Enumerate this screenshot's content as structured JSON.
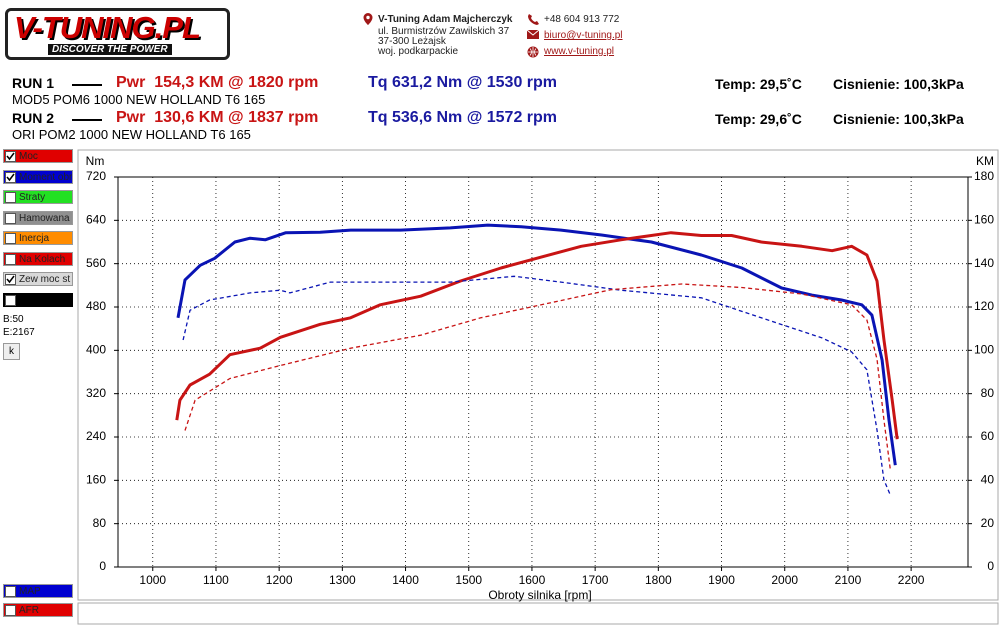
{
  "header": {
    "logo": "V-TUNING.PL",
    "slogan": "DISCOVER THE POWER",
    "company": "V-Tuning Adam Majcherczyk",
    "street": "ul. Burmistrzów Zawilskich 37",
    "city": "37-300 Leżajsk",
    "region": "woj. podkarpackie",
    "phone": "+48 604 913 772",
    "email": "biuro@v-tuning.pl",
    "web": "www.v-tuning.pl"
  },
  "runs": [
    {
      "label": "RUN 1",
      "power": "Pwr  154,3 KM @ 1820 rpm",
      "torque": "Tq 631,2 Nm @ 1530 rpm",
      "temp": "Temp: 29,5˚C",
      "pressure": "Cisnienie: 100,3kPa",
      "description": "MOD5 POM6 1000 NEW HOLLAND T6 165"
    },
    {
      "label": "RUN 2",
      "power": "Pwr  130,6 KM @ 1837 rpm",
      "torque": "Tq 536,6 Nm @ 1572 rpm",
      "temp": "Temp: 29,6˚C",
      "pressure": "Cisnienie: 100,3kPa",
      "description": "ORI POM2 1000 NEW HOLLAND T6 165"
    }
  ],
  "panel": {
    "options": [
      {
        "label": "Moc",
        "color": "#e00000",
        "checked": true
      },
      {
        "label": "Moment obr",
        "color": "#0000d0",
        "checked": true
      },
      {
        "label": "Straty",
        "color": "#22e022",
        "checked": false
      },
      {
        "label": "Hamowana",
        "color": "#909090",
        "checked": false
      },
      {
        "label": "Inercja",
        "color": "#ff8c00",
        "checked": false
      },
      {
        "label": "Na Kolach",
        "color": "#e00000",
        "checked": false
      },
      {
        "label": "Zew moc st",
        "color": "#d8d8d8",
        "checked": true
      }
    ],
    "begin": "B:50",
    "end": "E:2167",
    "button": "k",
    "bottom_options": [
      {
        "label": "MAP",
        "color": "#0000d0",
        "checked": false
      },
      {
        "label": "AFR",
        "color": "#e00000",
        "checked": false
      }
    ]
  },
  "chart_data": {
    "type": "line",
    "xlabel": "Obroty silnika [rpm]",
    "ylabel": "Nm",
    "y2label": "KM",
    "xlim": [
      945,
      2290
    ],
    "xticks": [
      1000,
      1100,
      1200,
      1300,
      1400,
      1500,
      1600,
      1700,
      1800,
      1900,
      2000,
      2100,
      2200
    ],
    "ylim": [
      0,
      720
    ],
    "yticks": [
      0,
      80,
      160,
      240,
      320,
      400,
      480,
      560,
      640,
      720
    ],
    "y2lim": [
      0,
      180
    ],
    "y2ticks": [
      0,
      20,
      40,
      60,
      80,
      100,
      120,
      140,
      160,
      180
    ],
    "grid": true,
    "series": [
      {
        "color": "#0a14b4",
        "style": "solid",
        "x": [
          1040,
          1051,
          1075,
          1098,
          1130,
          1154,
          1178,
          1210,
          1265,
          1313,
          1392,
          1471,
          1530,
          1583,
          1646,
          1710,
          1789,
          1868,
          1932,
          1995,
          2043,
          2090,
          2122,
          2138,
          2154,
          2165,
          2175
        ],
        "values": [
          460,
          530,
          557,
          570,
          600,
          607,
          604,
          617,
          618,
          622,
          622,
          626,
          631.2,
          628,
          622,
          613,
          600,
          576,
          552,
          515,
          502,
          493,
          484,
          465,
          382,
          271,
          188
        ]
      },
      {
        "color": "#c81414",
        "style": "solid",
        "axis": "y2",
        "x": [
          1038,
          1043,
          1059,
          1090,
          1122,
          1170,
          1202,
          1265,
          1313,
          1360,
          1424,
          1487,
          1551,
          1614,
          1678,
          1741,
          1820,
          1868,
          1916,
          1963,
          2027,
          2075,
          2106,
          2130,
          2146,
          2157,
          2170,
          2178
        ],
        "values": [
          67.8,
          77,
          84,
          89,
          98,
          101,
          106,
          112,
          115,
          121,
          125,
          132,
          138,
          143,
          148,
          151,
          154.3,
          153,
          153,
          150,
          148,
          146,
          148,
          144,
          132,
          105,
          77,
          59
        ]
      },
      {
        "color": "#0a14b4",
        "style": "dashed",
        "x": [
          1048,
          1059,
          1090,
          1154,
          1202,
          1217,
          1281,
          1392,
          1471,
          1572,
          1646,
          1741,
          1868,
          1963,
          2059,
          2106,
          2130,
          2146,
          2157,
          2167
        ],
        "values": [
          419,
          474,
          493,
          506,
          511,
          506,
          526,
          526,
          526,
          536.6,
          526,
          511,
          497,
          460,
          423,
          397,
          364,
          253,
          161,
          133
        ]
      },
      {
        "color": "#c81414",
        "style": "dashed",
        "axis": "y2",
        "x": [
          1051,
          1067,
          1122,
          1202,
          1313,
          1424,
          1519,
          1630,
          1725,
          1837,
          1932,
          2027,
          2106,
          2130,
          2146,
          2157,
          2167
        ],
        "values": [
          63,
          77,
          87,
          93,
          101,
          107,
          115,
          122,
          128,
          130.6,
          129,
          126,
          121,
          114,
          96,
          68,
          45
        ]
      }
    ]
  }
}
